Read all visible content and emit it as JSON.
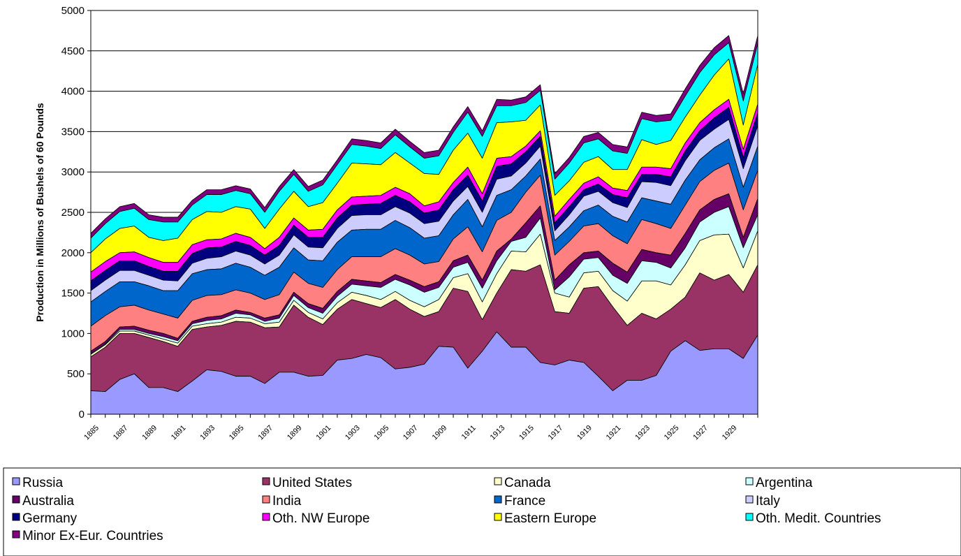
{
  "chart_data": {
    "type": "stacked-area",
    "y_label": "Production in Millions of Bushels of 60 Pounds",
    "categories": [
      "1885",
      null,
      "1887",
      null,
      "1889",
      null,
      "1891",
      null,
      "1893",
      null,
      "1895",
      null,
      "1897",
      null,
      "1899",
      null,
      "1901",
      null,
      "1903",
      null,
      "1905",
      null,
      "1907",
      null,
      "1909",
      null,
      "1911",
      null,
      "1913",
      null,
      "1915",
      null,
      "1917",
      null,
      "1919",
      null,
      "1921",
      null,
      "1923",
      null,
      "1925",
      null,
      "1927",
      null,
      "1929",
      null,
      null
    ],
    "ylim": [
      0,
      5000
    ],
    "yticks": [
      0,
      500,
      1000,
      1500,
      2000,
      2500,
      3000,
      3500,
      4000,
      4500,
      5000
    ],
    "grid": true,
    "series": [
      {
        "name": "Russia",
        "color": "#9999ff",
        "values": [
          290,
          280,
          430,
          500,
          330,
          330,
          280,
          410,
          550,
          530,
          470,
          470,
          380,
          520,
          520,
          470,
          480,
          670,
          690,
          740,
          700,
          560,
          580,
          620,
          840,
          830,
          570,
          780,
          1020,
          830,
          830,
          640,
          610,
          670,
          640,
          470,
          290,
          420,
          420,
          480,
          780,
          910,
          790,
          810,
          810,
          690,
          980
        ]
      },
      {
        "name": "United States",
        "color": "#993366",
        "values": [
          420,
          550,
          570,
          500,
          620,
          570,
          560,
          640,
          530,
          570,
          680,
          670,
          690,
          560,
          830,
          730,
          630,
          630,
          730,
          630,
          620,
          860,
          720,
          590,
          430,
          730,
          950,
          390,
          480,
          960,
          940,
          1210,
          660,
          580,
          920,
          1110,
          1040,
          680,
          830,
          700,
          520,
          540,
          960,
          850,
          920,
          820,
          870
        ]
      },
      {
        "name": "Canada",
        "color": "#ffffcc",
        "values": [
          30,
          30,
          30,
          30,
          30,
          30,
          40,
          40,
          40,
          40,
          50,
          50,
          50,
          60,
          60,
          60,
          70,
          80,
          90,
          100,
          100,
          100,
          110,
          120,
          150,
          130,
          220,
          220,
          240,
          230,
          240,
          380,
          230,
          200,
          190,
          190,
          200,
          300,
          400,
          470,
          300,
          400,
          400,
          560,
          500,
          300,
          420
        ]
      },
      {
        "name": "Argentina",
        "color": "#ccffff",
        "values": [
          10,
          10,
          20,
          20,
          20,
          30,
          30,
          30,
          40,
          40,
          50,
          40,
          30,
          50,
          60,
          60,
          70,
          80,
          100,
          120,
          150,
          150,
          190,
          180,
          150,
          130,
          140,
          170,
          160,
          120,
          180,
          200,
          40,
          250,
          170,
          170,
          190,
          220,
          250,
          230,
          210,
          210,
          230,
          280,
          340,
          250,
          200
        ]
      },
      {
        "name": "Australia",
        "color": "#660066",
        "values": [
          30,
          30,
          30,
          40,
          40,
          40,
          30,
          30,
          40,
          40,
          40,
          30,
          40,
          40,
          40,
          50,
          60,
          60,
          60,
          60,
          60,
          60,
          60,
          70,
          70,
          80,
          90,
          100,
          120,
          30,
          180,
          150,
          120,
          150,
          80,
          80,
          150,
          140,
          140,
          120,
          160,
          180,
          150,
          160,
          160,
          130,
          200
        ]
      },
      {
        "name": "India",
        "color": "#ff8080",
        "values": [
          310,
          320,
          250,
          260,
          250,
          240,
          250,
          260,
          270,
          260,
          250,
          240,
          230,
          250,
          250,
          250,
          260,
          270,
          280,
          300,
          320,
          320,
          310,
          280,
          250,
          270,
          350,
          350,
          380,
          330,
          380,
          380,
          310,
          290,
          330,
          340,
          340,
          350,
          370,
          360,
          330,
          350,
          350,
          360,
          380,
          340,
          350
        ]
      },
      {
        "name": "France",
        "color": "#0066cc",
        "values": [
          300,
          300,
          310,
          290,
          300,
          290,
          340,
          330,
          320,
          320,
          330,
          320,
          300,
          340,
          300,
          290,
          330,
          340,
          330,
          340,
          340,
          350,
          340,
          320,
          320,
          300,
          340,
          310,
          310,
          280,
          200,
          200,
          180,
          180,
          190,
          230,
          240,
          270,
          270,
          280,
          300,
          310,
          270,
          280,
          300,
          280,
          300
        ]
      },
      {
        "name": "Italy",
        "color": "#ccccff",
        "values": [
          140,
          140,
          140,
          140,
          130,
          130,
          120,
          130,
          140,
          150,
          150,
          150,
          140,
          150,
          160,
          160,
          160,
          170,
          180,
          180,
          180,
          170,
          180,
          180,
          180,
          170,
          160,
          180,
          200,
          170,
          160,
          160,
          120,
          150,
          180,
          170,
          170,
          180,
          200,
          230,
          230,
          240,
          240,
          230,
          240,
          230,
          250
        ]
      },
      {
        "name": "Germany",
        "color": "#000080",
        "values": [
          120,
          120,
          120,
          120,
          110,
          110,
          120,
          120,
          130,
          120,
          120,
          120,
          110,
          120,
          120,
          120,
          130,
          130,
          130,
          130,
          140,
          140,
          140,
          130,
          140,
          140,
          140,
          140,
          160,
          150,
          140,
          120,
          100,
          100,
          80,
          90,
          100,
          120,
          90,
          100,
          110,
          120,
          120,
          140,
          150,
          140,
          160
        ]
      },
      {
        "name": "Oth. NW Europe",
        "color": "#ff00ff",
        "values": [
          110,
          110,
          100,
          110,
          110,
          110,
          110,
          110,
          100,
          100,
          100,
          100,
          80,
          100,
          90,
          90,
          100,
          100,
          100,
          100,
          100,
          100,
          100,
          90,
          100,
          90,
          100,
          90,
          100,
          90,
          70,
          70,
          80,
          90,
          80,
          90,
          80,
          90,
          90,
          90,
          100,
          100,
          100,
          100,
          100,
          100,
          110
        ]
      },
      {
        "name": "Eastern Europe",
        "color": "#ffff00",
        "values": [
          240,
          280,
          300,
          320,
          250,
          270,
          300,
          310,
          350,
          330,
          330,
          350,
          250,
          350,
          330,
          290,
          330,
          330,
          420,
          400,
          380,
          430,
          380,
          400,
          340,
          400,
          420,
          440,
          440,
          430,
          320,
          320,
          260,
          230,
          260,
          250,
          230,
          260,
          340,
          280,
          350,
          320,
          340,
          430,
          500,
          300,
          490
        ]
      },
      {
        "name": "Oth. Medit. Countries",
        "color": "#00ffff",
        "values": [
          180,
          190,
          210,
          220,
          220,
          230,
          200,
          180,
          210,
          220,
          200,
          190,
          200,
          220,
          210,
          190,
          220,
          230,
          230,
          220,
          200,
          220,
          200,
          190,
          230,
          220,
          260,
          270,
          210,
          200,
          220,
          180,
          200,
          220,
          240,
          220,
          230,
          200,
          260,
          280,
          250,
          260,
          280,
          250,
          200,
          300,
          260
        ]
      },
      {
        "name": "Minor Ex-Eur. Countries",
        "color": "#800080",
        "values": [
          60,
          60,
          60,
          60,
          60,
          60,
          60,
          60,
          60,
          60,
          60,
          60,
          60,
          60,
          60,
          60,
          60,
          60,
          70,
          70,
          70,
          70,
          70,
          70,
          70,
          70,
          70,
          70,
          80,
          70,
          70,
          70,
          70,
          70,
          80,
          80,
          80,
          80,
          80,
          80,
          80,
          90,
          90,
          90,
          90,
          90,
          100
        ]
      }
    ]
  }
}
